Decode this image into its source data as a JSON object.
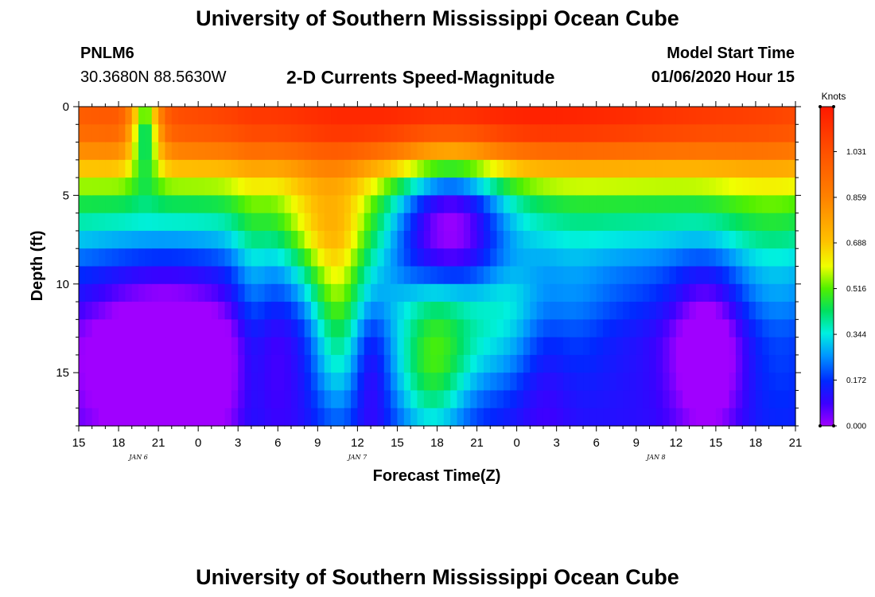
{
  "header": {
    "title": "University of Southern Mississippi Ocean Cube",
    "station_id": "PNLM6",
    "coords": "30.3680N 88.5630W",
    "subtitle": "2-D Currents Speed-Magnitude",
    "model_label": "Model Start Time",
    "model_time": "01/06/2020 Hour 15"
  },
  "footer": {
    "title": "University of Southern Mississippi Ocean Cube"
  },
  "chart_data": {
    "type": "heatmap",
    "title": "2-D Currents Speed-Magnitude",
    "xlabel": "Forecast Time(Z)",
    "ylabel": "Depth (ft)",
    "x_unit": "hours since 01/06/2020 15Z",
    "xlim": [
      0,
      54
    ],
    "ylim": [
      0,
      18
    ],
    "x_ticks": [
      {
        "h": 0,
        "label": "15"
      },
      {
        "h": 3,
        "label": "18"
      },
      {
        "h": 6,
        "label": "21"
      },
      {
        "h": 9,
        "label": "0"
      },
      {
        "h": 12,
        "label": "3"
      },
      {
        "h": 15,
        "label": "6"
      },
      {
        "h": 18,
        "label": "9"
      },
      {
        "h": 21,
        "label": "12"
      },
      {
        "h": 24,
        "label": "15"
      },
      {
        "h": 27,
        "label": "18"
      },
      {
        "h": 30,
        "label": "21"
      },
      {
        "h": 33,
        "label": "0"
      },
      {
        "h": 36,
        "label": "3"
      },
      {
        "h": 39,
        "label": "6"
      },
      {
        "h": 42,
        "label": "9"
      },
      {
        "h": 45,
        "label": "12"
      },
      {
        "h": 48,
        "label": "15"
      },
      {
        "h": 51,
        "label": "18"
      },
      {
        "h": 54,
        "label": "21"
      }
    ],
    "y_ticks": [
      {
        "d": 0,
        "label": "0"
      },
      {
        "d": 5,
        "label": "5"
      },
      {
        "d": 10,
        "label": "10"
      },
      {
        "d": 15,
        "label": "15"
      }
    ],
    "date_labels": [
      {
        "h": 4.5,
        "label": "JAN 6"
      },
      {
        "h": 21,
        "label": "JAN 7"
      },
      {
        "h": 43.5,
        "label": "JAN 8"
      }
    ],
    "colorbar": {
      "title": "Knots",
      "min": 0,
      "max": 1.2,
      "ticks": [
        "0.000",
        "0.172",
        "0.344",
        "0.516",
        "0.688",
        "0.859",
        "1.031"
      ]
    },
    "grid_step_hours": 0.5,
    "depth_levels": 18,
    "features": [
      {
        "h": 30.5,
        "d": 0.8,
        "v": 0.26,
        "sh": 18,
        "sd": 1.8
      },
      {
        "h": 5.0,
        "d": 1.2,
        "v": -0.55,
        "sh": 0.8,
        "sd": 1.8
      },
      {
        "h": 28.0,
        "d": 6.5,
        "v": -0.45,
        "sh": 3.0,
        "sd": 3.0
      },
      {
        "h": 19.5,
        "d": 12,
        "v": 0.3,
        "sh": 1.5,
        "sd": 4
      },
      {
        "h": 33.0,
        "d": 12,
        "v": 0.2,
        "sh": 4,
        "sd": 3
      },
      {
        "h": 13.0,
        "d": 12,
        "v": 0.1,
        "sh": 1,
        "sd": 6
      },
      {
        "h": 18.5,
        "d": 7,
        "v": 0.25,
        "sh": 2.5,
        "sd": 2.5
      },
      {
        "h": 6.5,
        "d": 14.3,
        "v": -0.28,
        "sh": 4.5,
        "sd": 3.8
      },
      {
        "h": 47.5,
        "d": 13.8,
        "v": -0.24,
        "sh": 2.0,
        "sd": 3.5
      },
      {
        "h": 22.0,
        "d": 14.5,
        "v": -0.12,
        "sh": 1.0,
        "sd": 3.0
      },
      {
        "h": 35.0,
        "d": 13.5,
        "v": -0.1,
        "sh": 1.5,
        "sd": 4.0
      },
      {
        "h": 26.5,
        "d": 14.5,
        "v": 0.3,
        "sh": 2.0,
        "sd": 3.5
      },
      {
        "h": 28.5,
        "d": 11.5,
        "v": 0.12,
        "sh": 3,
        "sd": 3
      },
      {
        "h": 22.8,
        "d": 11,
        "v": 0.08,
        "sh": 1.5,
        "sd": 4
      },
      {
        "h": 52.0,
        "d": 11,
        "v": 0.1,
        "sh": 3,
        "sd": 6
      }
    ]
  }
}
